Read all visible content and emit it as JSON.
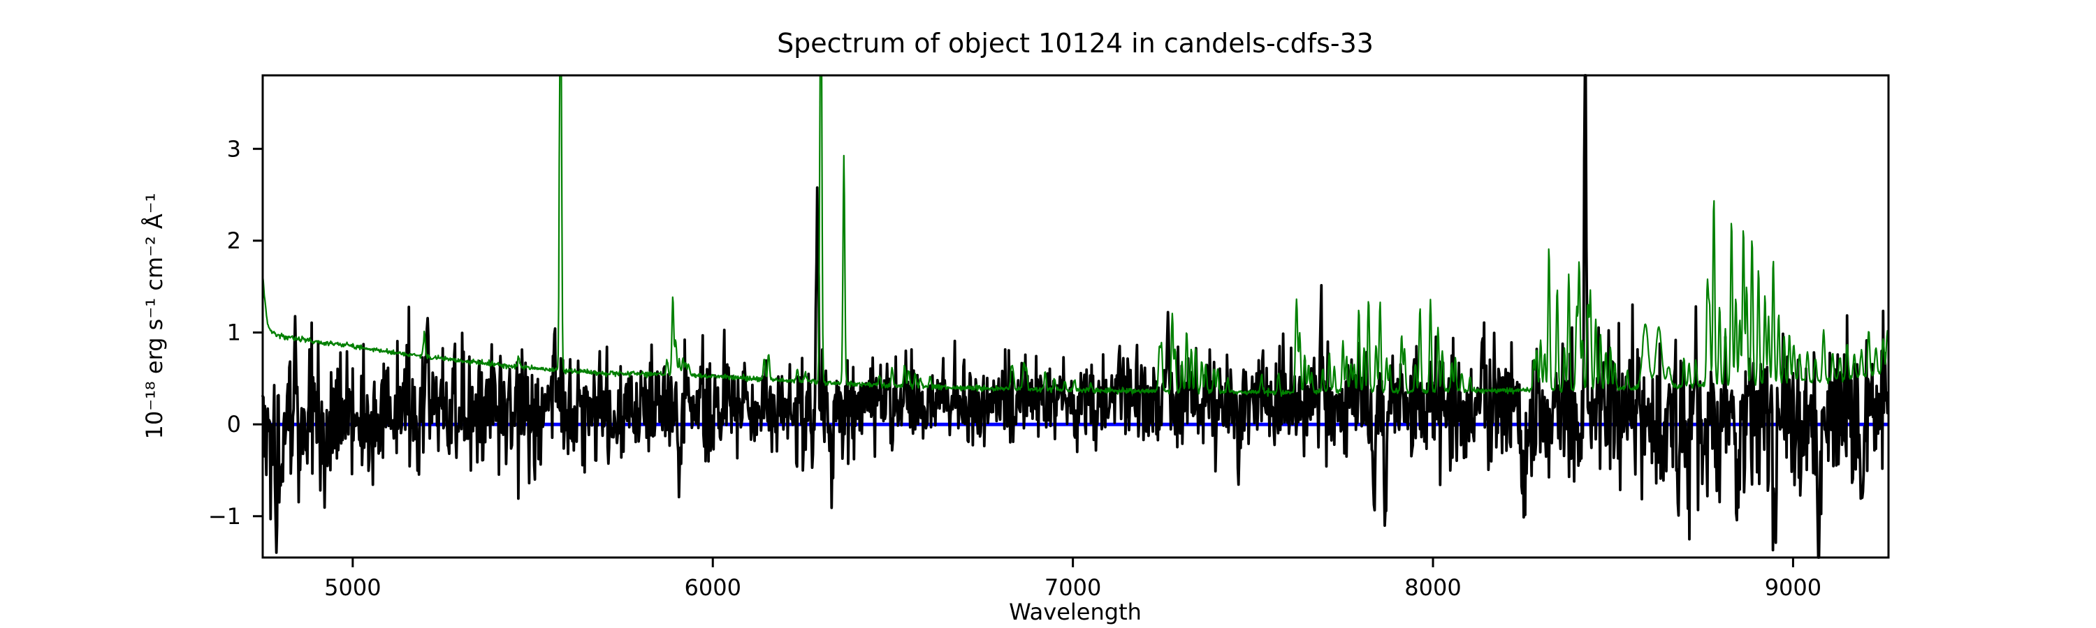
{
  "figure": {
    "title": "Spectrum of object 10124 in candels-cdfs-33",
    "background": "#ffffff"
  },
  "chart_data": {
    "type": "line",
    "title": "Spectrum of object 10124 in candels-cdfs-33",
    "xlabel": "Wavelength",
    "ylabel": "10⁻¹⁸ erg s⁻¹ cm⁻² Å⁻¹",
    "xlim": [
      4750,
      9265
    ],
    "ylim": [
      -1.45,
      3.8
    ],
    "xticks": [
      5000,
      6000,
      7000,
      8000,
      9000
    ],
    "yticks": [
      -1,
      0,
      1,
      2,
      3
    ],
    "grid": false,
    "legend": "none",
    "background": "#ffffff",
    "feature_columns": [
      "wavelength_angstrom",
      "amplitude_flux",
      "sigma_angstrom"
    ],
    "profile_columns": [
      "wavelength_angstrom",
      "flux"
    ],
    "series": [
      {
        "name": "zero flux reference",
        "role": "hline",
        "y": 0,
        "color": "#0000ff",
        "linewidth": 5
      },
      {
        "name": "object spectrum",
        "role": "noisy-spectrum",
        "color": "#000000",
        "linewidth": 3.8,
        "sample_step": 2,
        "seed": 20124,
        "continuum": [
          [
            4750,
            0.05
          ],
          [
            5000,
            0.1
          ],
          [
            5400,
            0.14
          ],
          [
            5800,
            0.16
          ],
          [
            6200,
            0.2
          ],
          [
            6600,
            0.24
          ],
          [
            7000,
            0.27
          ],
          [
            7400,
            0.26
          ],
          [
            7800,
            0.22
          ],
          [
            8200,
            0.15
          ],
          [
            8600,
            0.05
          ],
          [
            9000,
            0.02
          ],
          [
            9265,
            0.05
          ]
        ],
        "noise_sigma": [
          [
            4750,
            0.36
          ],
          [
            5200,
            0.33
          ],
          [
            5800,
            0.3
          ],
          [
            6300,
            0.28
          ],
          [
            6600,
            0.22
          ],
          [
            7100,
            0.22
          ],
          [
            7500,
            0.26
          ],
          [
            7900,
            0.3
          ],
          [
            8250,
            0.4
          ],
          [
            8700,
            0.44
          ],
          [
            9265,
            0.42
          ]
        ],
        "features": [
          [
            4840,
            0.75,
            3
          ],
          [
            5208,
            0.8,
            3
          ],
          [
            5560,
            0.8,
            3
          ],
          [
            6290,
            2.05,
            3
          ],
          [
            7264,
            0.75,
            3
          ],
          [
            7690,
            0.95,
            3
          ],
          [
            8139,
            0.95,
            3
          ],
          [
            8423,
            3.45,
            3
          ],
          [
            4787,
            -0.85,
            3
          ],
          [
            4800,
            -0.9,
            3
          ],
          [
            4925,
            -0.8,
            3
          ],
          [
            5909,
            -0.95,
            3
          ],
          [
            6330,
            -0.8,
            3
          ],
          [
            7460,
            -0.85,
            3
          ],
          [
            7835,
            -0.95,
            3
          ],
          [
            7868,
            -0.95,
            3
          ],
          [
            8250,
            -0.9,
            4
          ],
          [
            8845,
            -1.1,
            4
          ],
          [
            8950,
            -1.05,
            4
          ],
          [
            9070,
            -1.05,
            4
          ],
          [
            9190,
            -0.9,
            4
          ]
        ]
      },
      {
        "name": "sky noise spectrum",
        "role": "noisy-spectrum",
        "color": "#008000",
        "linewidth": 2.2,
        "sample_step": 1.5,
        "seed": 33,
        "continuum": [
          [
            4750,
            1.62
          ],
          [
            4756,
            1.35
          ],
          [
            4763,
            1.1
          ],
          [
            4775,
            1.0
          ],
          [
            4800,
            0.96
          ],
          [
            4900,
            0.9
          ],
          [
            5000,
            0.85
          ],
          [
            5100,
            0.79
          ],
          [
            5200,
            0.74
          ],
          [
            5300,
            0.69
          ],
          [
            5400,
            0.65
          ],
          [
            5500,
            0.61
          ],
          [
            5600,
            0.58
          ],
          [
            5700,
            0.56
          ],
          [
            5800,
            0.55
          ],
          [
            5900,
            0.54
          ],
          [
            6000,
            0.52
          ],
          [
            6100,
            0.5
          ],
          [
            6200,
            0.48
          ],
          [
            6300,
            0.46
          ],
          [
            6400,
            0.44
          ],
          [
            6500,
            0.42
          ],
          [
            6600,
            0.41
          ],
          [
            6700,
            0.4
          ],
          [
            6800,
            0.39
          ],
          [
            7000,
            0.37
          ],
          [
            7200,
            0.36
          ],
          [
            7400,
            0.35
          ],
          [
            7600,
            0.35
          ],
          [
            7800,
            0.36
          ],
          [
            8000,
            0.36
          ],
          [
            8200,
            0.37
          ],
          [
            8400,
            0.38
          ],
          [
            8600,
            0.4
          ],
          [
            8800,
            0.43
          ],
          [
            9000,
            0.46
          ],
          [
            9100,
            0.48
          ],
          [
            9200,
            0.52
          ],
          [
            9265,
            0.56
          ]
        ],
        "noise_sigma": [
          [
            4750,
            0.013
          ],
          [
            9265,
            0.013
          ]
        ],
        "features": [
          [
            5199,
            0.26,
            2.5
          ],
          [
            5461,
            0.12,
            2.5
          ],
          [
            5577,
            6.0,
            2.5
          ],
          [
            5873,
            0.16,
            2.5
          ],
          [
            5889,
            0.85,
            2.5
          ],
          [
            5897,
            0.38,
            2.5
          ],
          [
            5907,
            0.16,
            2.5
          ],
          [
            5917,
            0.18,
            2.5
          ],
          [
            5925,
            0.14,
            2.5
          ],
          [
            5933,
            0.12,
            2.5
          ],
          [
            6143,
            0.22,
            2.5
          ],
          [
            6155,
            0.28,
            2.5
          ],
          [
            6235,
            0.12,
            2.5
          ],
          [
            6257,
            0.1,
            2.5
          ],
          [
            6300,
            6.0,
            2.5
          ],
          [
            6364,
            2.45,
            2.5
          ],
          [
            6463,
            0.12,
            2.5
          ],
          [
            6498,
            0.2,
            2.5
          ],
          [
            6533,
            0.22,
            2.5
          ],
          [
            6544,
            0.18,
            2.5
          ],
          [
            6562,
            0.14,
            2.5
          ],
          [
            6577,
            0.1,
            2.5
          ],
          [
            6604,
            0.12,
            2.5
          ],
          [
            6829,
            0.22,
            2.5
          ],
          [
            6834,
            0.18,
            2.5
          ],
          [
            6864,
            0.3,
            3
          ],
          [
            6871,
            0.22,
            2.5
          ],
          [
            6923,
            0.2,
            2.5
          ],
          [
            6949,
            0.14,
            2.5
          ],
          [
            6978,
            0.1,
            2.5
          ],
          [
            7004,
            0.12,
            2.5
          ],
          [
            7050,
            0.08,
            2.5
          ],
          [
            7240,
            0.45,
            2.5
          ],
          [
            7246,
            0.5,
            2.5
          ],
          [
            7276,
            0.85,
            2.5
          ],
          [
            7284,
            0.45,
            2.5
          ],
          [
            7303,
            0.3,
            2.5
          ],
          [
            7316,
            0.68,
            2.5
          ],
          [
            7329,
            0.45,
            2.5
          ],
          [
            7341,
            0.5,
            2.5
          ],
          [
            7358,
            0.35,
            2.5
          ],
          [
            7369,
            0.3,
            2.5
          ],
          [
            7392,
            0.28,
            2.5
          ],
          [
            7402,
            0.25,
            2.5
          ],
          [
            7430,
            0.15,
            2.5
          ],
          [
            7524,
            0.18,
            2.5
          ],
          [
            7571,
            0.22,
            2.5
          ],
          [
            7621,
            1.0,
            3
          ],
          [
            7630,
            0.65,
            2.5
          ],
          [
            7644,
            0.4,
            2.5
          ],
          [
            7654,
            0.28,
            2.5
          ],
          [
            7663,
            0.2,
            2.5
          ],
          [
            7694,
            0.25,
            2.5
          ],
          [
            7712,
            0.42,
            2.5
          ],
          [
            7726,
            0.25,
            2.5
          ],
          [
            7750,
            0.55,
            2.5
          ],
          [
            7760,
            0.38,
            2.5
          ],
          [
            7772,
            0.3,
            2.5
          ],
          [
            7781,
            0.3,
            2.5
          ],
          [
            7794,
            0.9,
            2.5
          ],
          [
            7809,
            0.48,
            2.5
          ],
          [
            7821,
            1.0,
            2.5
          ],
          [
            7842,
            0.52,
            2.5
          ],
          [
            7853,
            0.98,
            2.5
          ],
          [
            7871,
            0.35,
            2.5
          ],
          [
            7880,
            0.28,
            2.5
          ],
          [
            7913,
            0.62,
            2.5
          ],
          [
            7921,
            0.45,
            2.5
          ],
          [
            7951,
            0.3,
            2.5
          ],
          [
            7964,
            0.92,
            2.5
          ],
          [
            7993,
            0.98,
            2.5
          ],
          [
            8014,
            0.7,
            2.5
          ],
          [
            8026,
            0.45,
            2.5
          ],
          [
            8052,
            0.3,
            2.5
          ],
          [
            8062,
            0.35,
            2.5
          ],
          [
            8080,
            0.2,
            2.5
          ],
          [
            8103,
            0.15,
            2.5
          ],
          [
            8280,
            0.35,
            2.5
          ],
          [
            8288,
            0.45,
            2.5
          ],
          [
            8299,
            0.55,
            2.5
          ],
          [
            8310,
            0.4,
            2.5
          ],
          [
            8322,
            1.55,
            2.5
          ],
          [
            8345,
            1.1,
            2.5
          ],
          [
            8365,
            0.45,
            2.5
          ],
          [
            8377,
            1.28,
            2.5
          ],
          [
            8399,
            0.85,
            2.5
          ],
          [
            8406,
            1.38,
            2.5
          ],
          [
            8415,
            0.55,
            2.5
          ],
          [
            8430,
            0.95,
            2.5
          ],
          [
            8437,
            1.05,
            2.5
          ],
          [
            8452,
            0.75,
            2.5
          ],
          [
            8465,
            0.6,
            2.5
          ],
          [
            8480,
            0.4,
            2.5
          ],
          [
            8493,
            0.45,
            2.5
          ],
          [
            8505,
            0.3,
            2.5
          ],
          [
            8540,
            0.18,
            2.5
          ],
          [
            8590,
            0.7,
            8
          ],
          [
            8627,
            0.65,
            8
          ],
          [
            8655,
            0.22,
            5
          ],
          [
            8697,
            0.3,
            2.5
          ],
          [
            8711,
            0.25,
            2.5
          ],
          [
            8730,
            0.28,
            2.5
          ],
          [
            8762,
            1.1,
            2.5
          ],
          [
            8768,
            0.85,
            2.5
          ],
          [
            8780,
            2.05,
            2.5
          ],
          [
            8796,
            0.85,
            2.5
          ],
          [
            8812,
            0.6,
            2.5
          ],
          [
            8829,
            1.8,
            2.5
          ],
          [
            8841,
            0.95,
            2.5
          ],
          [
            8852,
            0.7,
            2.5
          ],
          [
            8862,
            1.7,
            2.5
          ],
          [
            8871,
            1.05,
            2.5
          ],
          [
            8886,
            1.6,
            2.5
          ],
          [
            8904,
            1.25,
            2.5
          ],
          [
            8922,
            0.95,
            2.5
          ],
          [
            8932,
            0.7,
            2.5
          ],
          [
            8945,
            1.35,
            2.5
          ],
          [
            8960,
            0.75,
            2.5
          ],
          [
            8975,
            0.5,
            2.5
          ],
          [
            8990,
            0.52,
            2.5
          ],
          [
            9002,
            0.4,
            3
          ],
          [
            9018,
            0.3,
            3
          ],
          [
            9040,
            0.32,
            3
          ],
          [
            9062,
            0.25,
            3
          ],
          [
            9085,
            0.55,
            3
          ],
          [
            9110,
            0.28,
            3
          ],
          [
            9130,
            0.25,
            3
          ],
          [
            9150,
            0.38,
            3
          ],
          [
            9170,
            0.25,
            3
          ],
          [
            9190,
            0.28,
            3
          ],
          [
            9210,
            0.5,
            3
          ],
          [
            9230,
            0.3,
            3
          ],
          [
            9250,
            0.38,
            3
          ],
          [
            9262,
            0.45,
            3
          ]
        ]
      }
    ]
  }
}
